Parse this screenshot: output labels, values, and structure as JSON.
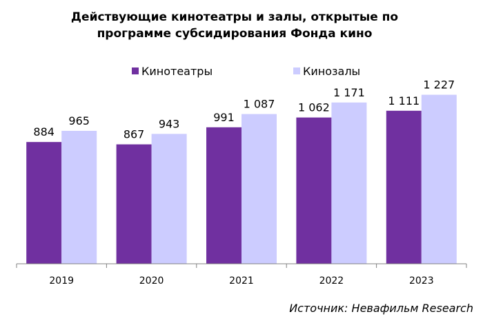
{
  "chart_data": {
    "type": "bar",
    "title_line1": "Действующие кинотеатры и залы, открытые по",
    "title_line2": "программе субсидирования Фонда кино",
    "categories": [
      "2019",
      "2020",
      "2021",
      "2022",
      "2023"
    ],
    "series": [
      {
        "name": "Кинотеатры",
        "color": "#7030a0",
        "values": [
          884,
          867,
          991,
          1062,
          1111
        ],
        "labels": [
          "884",
          "867",
          "991",
          "1 062",
          "1 111"
        ]
      },
      {
        "name": "Кинозалы",
        "color": "#ccccff",
        "values": [
          965,
          943,
          1087,
          1171,
          1227
        ],
        "labels": [
          "965",
          "943",
          "1 087",
          "1 171",
          "1 227"
        ]
      }
    ],
    "ylim": [
      0,
      1500
    ],
    "grid": false,
    "legend_position": "top"
  },
  "source": "Источник: Невафильм Research"
}
